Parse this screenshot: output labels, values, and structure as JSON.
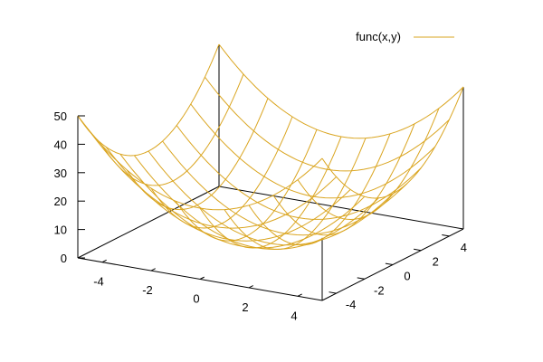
{
  "chart_data": {
    "type": "surface",
    "title": "",
    "function": "x**2 + y**2",
    "series": [
      {
        "name": "func(x,y)",
        "color": "#daa520"
      }
    ],
    "legend": {
      "position": "top-right",
      "label": "func(x,y)"
    },
    "xrange": [
      -5,
      5
    ],
    "yrange": [
      -5,
      5
    ],
    "zrange": [
      0,
      50
    ],
    "x_ticks": [
      "-4",
      "-2",
      "0",
      "2",
      "4"
    ],
    "y_ticks": [
      "-4",
      "-2",
      "0",
      "2",
      "4"
    ],
    "z_ticks": [
      "0",
      "10",
      "20",
      "30",
      "40",
      "50"
    ],
    "grid_samples": [
      -5,
      -4,
      -3,
      -2,
      -1,
      0,
      1,
      2,
      3,
      4,
      5
    ],
    "xlabel": "",
    "ylabel": "",
    "zlabel": "",
    "grid": false
  }
}
